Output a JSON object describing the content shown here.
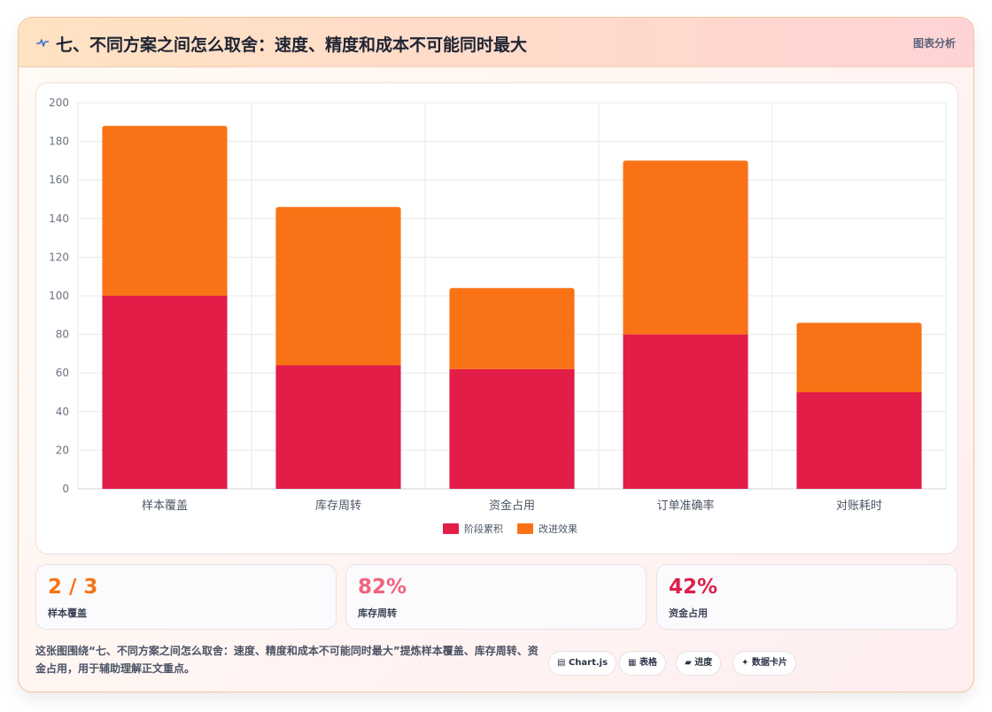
{
  "header": {
    "icon": "pulse-icon",
    "title": "七、不同方案之间怎么取舍：速度、精度和成本不可能同时最大",
    "tag": "图表分析"
  },
  "chart_data": {
    "type": "bar",
    "stacked": true,
    "categories": [
      "样本覆盖",
      "库存周转",
      "资金占用",
      "订单准确率",
      "对账耗时"
    ],
    "series": [
      {
        "name": "阶段累积",
        "color": "#e11d48",
        "values": [
          100,
          64,
          62,
          80,
          50
        ]
      },
      {
        "name": "改进效果",
        "color": "#f97316",
        "values": [
          88,
          82,
          42,
          90,
          36
        ]
      }
    ],
    "ylim": [
      0,
      200
    ],
    "yticks": [
      0,
      20,
      40,
      60,
      80,
      100,
      120,
      140,
      160,
      180,
      200
    ],
    "grid": true,
    "legend": "bottom"
  },
  "stats": [
    {
      "value": "2 / 3",
      "label": "样本覆盖",
      "color": "#f97316"
    },
    {
      "value": "82%",
      "label": "库存周转",
      "color": "#f0647e"
    },
    {
      "value": "42%",
      "label": "资金占用",
      "color": "#dc1f4a"
    }
  ],
  "footer": {
    "text": "这张图围绕“七、不同方案之间怎么取舍：速度、精度和成本不可能同时最大”提炼样本覆盖、库存周转、资金占用，用于辅助理解正文重点。",
    "chips": [
      {
        "icon": "chart-icon",
        "glyph": "▤",
        "label": "Chart.js"
      },
      {
        "icon": "table-icon",
        "glyph": "▦",
        "label": "表格"
      },
      {
        "icon": "progress-icon",
        "glyph": "▰",
        "label": "进度"
      },
      {
        "icon": "sparkle-icon",
        "glyph": "✦",
        "label": "数据卡片"
      }
    ]
  }
}
